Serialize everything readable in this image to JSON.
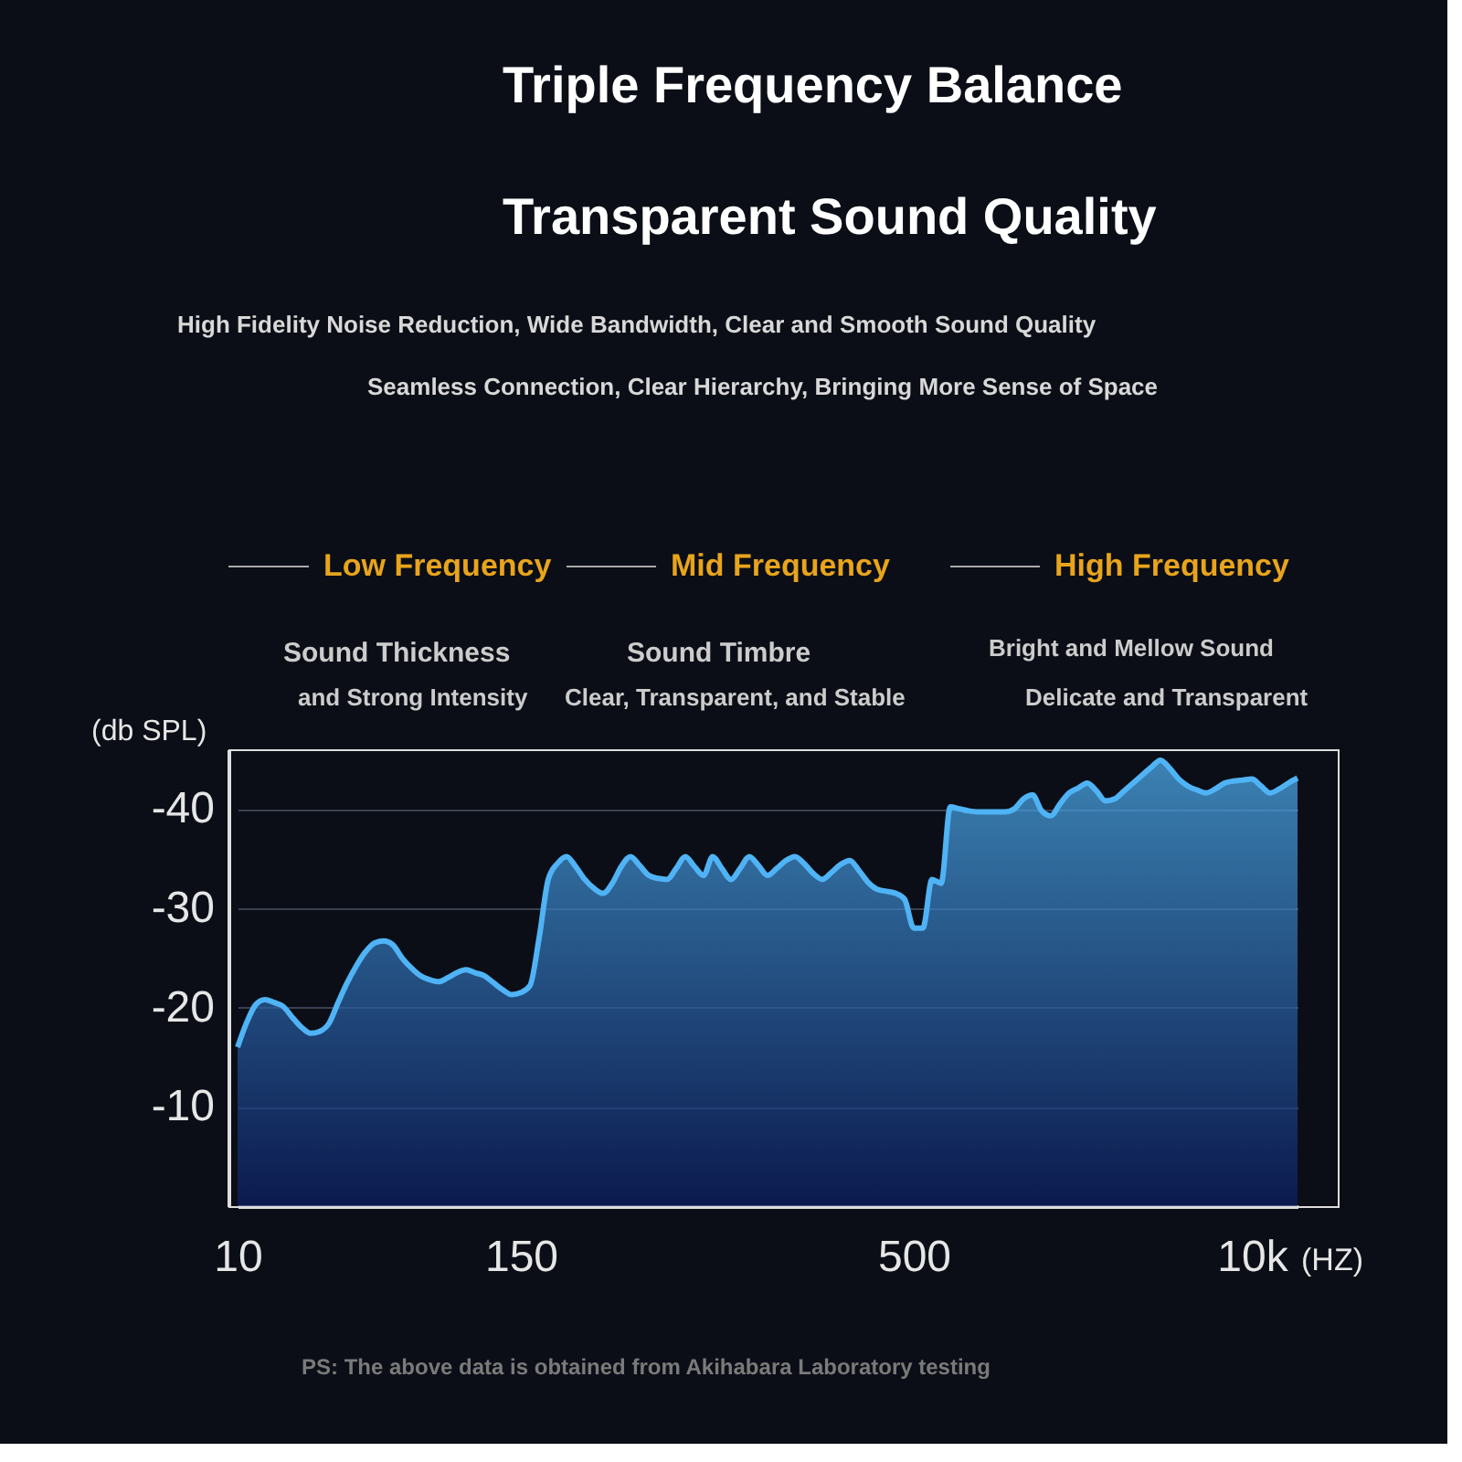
{
  "chart_data": {
    "type": "area",
    "title": "Triple Frequency Balance",
    "subtitle": "Transparent Sound Quality",
    "xlabel": "(HZ)",
    "ylabel": "(db SPL)",
    "categories": [
      "10",
      null,
      null,
      null,
      null,
      null,
      null,
      null,
      null,
      null,
      null,
      null,
      null,
      null,
      null,
      null,
      null,
      null,
      null,
      null,
      null,
      null,
      null,
      null,
      null,
      null,
      null,
      null,
      null,
      null,
      null,
      "150",
      null,
      null,
      null,
      null,
      null,
      null,
      null,
      null,
      null,
      null,
      null,
      null,
      null,
      null,
      null,
      null,
      null,
      null,
      null,
      null,
      null,
      null,
      null,
      null,
      null,
      null,
      null,
      null,
      null,
      null,
      null,
      null,
      null,
      null,
      null,
      null,
      null,
      null,
      null,
      null,
      null,
      null,
      "500",
      null,
      null,
      null,
      null,
      null,
      null,
      null,
      null,
      null,
      null,
      null,
      null,
      null,
      null,
      null,
      null,
      null,
      null,
      null,
      null,
      null,
      null,
      null,
      null,
      null,
      null,
      null,
      null,
      null,
      null,
      null,
      null,
      null,
      null,
      null,
      null,
      "10k",
      null,
      null,
      null,
      null,
      null
    ],
    "series": [
      {
        "color": "#4fb3f5",
        "values": [
          -16,
          -18.5,
          -20.3,
          -20.8,
          -20.5,
          -20.1,
          -19,
          -18,
          -17.4,
          -17.6,
          -18.4,
          -20.5,
          -22.5,
          -24.2,
          -25.6,
          -26.5,
          -26.7,
          -26.3,
          -25,
          -24,
          -23.2,
          -22.8,
          -22.6,
          -23,
          -23.5,
          -23.8,
          -23.5,
          -23.2,
          -22.5,
          -21.8,
          -21.3,
          -21.5,
          -22.2,
          -27,
          -32.9,
          -34.5,
          -35.2,
          -34.2,
          -32.9,
          -32,
          -31.5,
          -32.5,
          -34.2,
          -35.2,
          -34.3,
          -33.3,
          -33,
          -32.9,
          -34,
          -35.2,
          -34.2,
          -33.3,
          -35.2,
          -34,
          -32.9,
          -34,
          -35.2,
          -34.3,
          -33.3,
          -34,
          -34.8,
          -35.2,
          -34.5,
          -33.5,
          -32.9,
          -33.6,
          -34.4,
          -34.8,
          -33.8,
          -32.6,
          -31.9,
          -31.7,
          -31.5,
          -30.9,
          -28,
          -28,
          -32.9,
          -32.5,
          -40.2,
          -40,
          -39.8,
          -39.7,
          -39.7,
          -39.7,
          -39.7,
          -40,
          -41,
          -41.4,
          -39.8,
          -39.3,
          -40.5,
          -41.6,
          -42.1,
          -42.6,
          -41.8,
          -40.8,
          -41,
          -41.8,
          -42.6,
          -43.4,
          -44.2,
          -44.9,
          -44.1,
          -43,
          -42.3,
          -41.9,
          -41.6,
          -42,
          -42.6,
          -42.8,
          -42.9,
          -43,
          -42.3,
          -41.6,
          -42,
          -42.6,
          -43.1
        ]
      }
    ],
    "ylim": [
      0,
      -46
    ],
    "yticks": [
      -10,
      -20,
      -30,
      -40
    ],
    "grid": "y",
    "annotations": [
      "High Fidelity Noise Reduction, Wide Bandwidth, Clear and Smooth Sound Quality",
      "Seamless Connection, Clear Hierarchy, Bringing More Sense of Space",
      "Low Frequency",
      "Mid Frequency",
      "High Frequency",
      "Sound Thickness",
      "and Strong Intensity",
      "Sound Timbre",
      "Clear, Transparent, and Stable",
      "Bright and Mellow Sound",
      "Delicate and Transparent",
      "PS: The above data is obtained from Akihabara Laboratory testing"
    ]
  }
}
